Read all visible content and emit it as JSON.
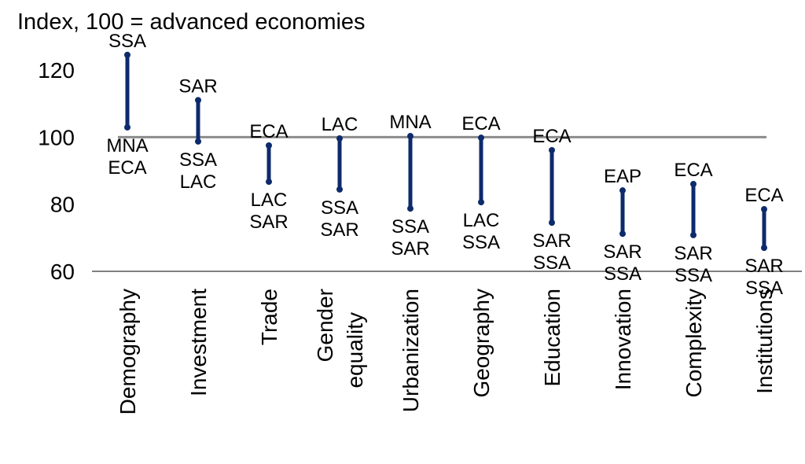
{
  "chart_data": {
    "type": "range",
    "title": "Index, 100 = advanced economies",
    "categories": [
      [
        "Demography"
      ],
      [
        "Investment"
      ],
      [
        "Trade"
      ],
      [
        "Gender",
        "equality"
      ],
      [
        "Urbanization"
      ],
      [
        "Geography"
      ],
      [
        "Education"
      ],
      [
        "Innovation"
      ],
      [
        "Complexity"
      ],
      [
        "Institutions"
      ]
    ],
    "high": [
      124.5,
      111,
      97.5,
      99.6,
      100.3,
      99.8,
      96.1,
      84.1,
      86,
      78.5
    ],
    "low": [
      102.9,
      98.7,
      86.7,
      84.4,
      78.7,
      80.6,
      74.5,
      71.2,
      70.8,
      67
    ],
    "high_labels": [
      "SSA",
      "SAR",
      "ECA",
      "LAC",
      "MNA",
      "ECA",
      "ECA",
      "EAP",
      "ECA",
      "ECA"
    ],
    "low_labels": [
      [
        "MNA",
        "ECA"
      ],
      [
        "SSA",
        "LAC"
      ],
      [
        "LAC",
        "SAR"
      ],
      [
        "SSA",
        "SAR"
      ],
      [
        "SSA",
        "SAR"
      ],
      [
        "LAC",
        "SSA"
      ],
      [
        "SAR",
        "SSA"
      ],
      [
        "SAR",
        "SSA"
      ],
      [
        "SAR",
        "SSA"
      ],
      [
        "SAR",
        "SSA"
      ]
    ],
    "color": "#0d2a6b",
    "reference_line": 100,
    "reference_color": "#8c8c8c",
    "ylim": [
      60,
      125
    ],
    "yticks": [
      60,
      80,
      100,
      120
    ]
  }
}
